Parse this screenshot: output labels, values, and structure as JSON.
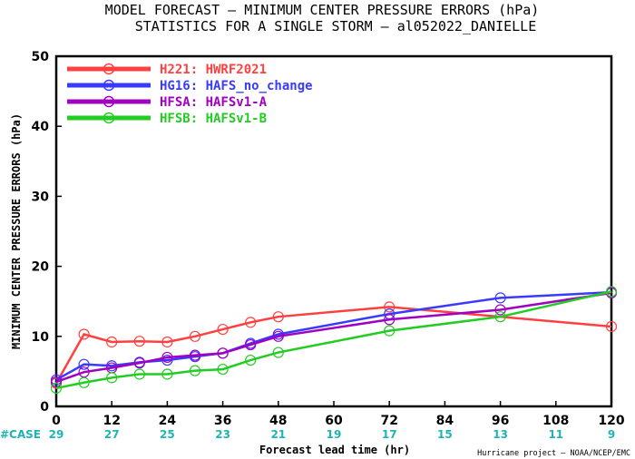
{
  "title_line1": "MODEL FORECAST – MINIMUM CENTER PRESSURE ERRORS (hPa)",
  "title_line2": "STATISTICS FOR A SINGLE STORM – al052022_DANIELLE",
  "credit": "Hurricane project – NOAA/NCEP/EMC",
  "case_label": "#CASE",
  "chart_data": {
    "type": "line",
    "xlabel": "Forecast lead time (hr)",
    "ylabel": "MINIMUM CENTER PRESSURE ERRORS (hPa)",
    "xlim": [
      0,
      120
    ],
    "ylim": [
      0,
      50
    ],
    "xticks": [
      0,
      12,
      24,
      36,
      48,
      60,
      72,
      84,
      96,
      108,
      120
    ],
    "yticks": [
      0,
      10,
      20,
      30,
      40,
      50
    ],
    "grid": false,
    "legend_position": "top-left",
    "case_counts": [
      {
        "x": 0,
        "count": "29"
      },
      {
        "x": 12,
        "count": "27"
      },
      {
        "x": 24,
        "count": "25"
      },
      {
        "x": 36,
        "count": "23"
      },
      {
        "x": 48,
        "count": "21"
      },
      {
        "x": 60,
        "count": "19"
      },
      {
        "x": 72,
        "count": "17"
      },
      {
        "x": 84,
        "count": "15"
      },
      {
        "x": 96,
        "count": "13"
      },
      {
        "x": 108,
        "count": "11"
      },
      {
        "x": 120,
        "count": "9"
      }
    ],
    "series": [
      {
        "name": "H221: HWRF2021",
        "color": "#ff4040",
        "x": [
          0,
          6,
          12,
          18,
          24,
          30,
          36,
          42,
          48,
          72,
          120
        ],
        "y": [
          3.3,
          10.3,
          9.2,
          9.3,
          9.2,
          10.0,
          11.0,
          12.0,
          12.8,
          14.2,
          11.4
        ]
      },
      {
        "name": "HG16: HAFS_no_change",
        "color": "#3a3aff",
        "x": [
          0,
          6,
          12,
          18,
          24,
          30,
          36,
          42,
          48,
          72,
          96,
          120
        ],
        "y": [
          3.8,
          6.0,
          5.8,
          6.3,
          6.6,
          7.1,
          7.6,
          9.0,
          10.3,
          13.2,
          15.5,
          16.3
        ]
      },
      {
        "name": "HFSA: HAFSv1-A",
        "color": "#a000c0",
        "x": [
          0,
          6,
          12,
          18,
          24,
          30,
          36,
          42,
          48,
          72,
          96,
          120
        ],
        "y": [
          3.5,
          4.9,
          5.5,
          6.2,
          7.0,
          7.3,
          7.6,
          8.8,
          10.0,
          12.4,
          13.8,
          16.2
        ]
      },
      {
        "name": "HFSB: HAFSv1-B",
        "color": "#22cc22",
        "x": [
          0,
          6,
          12,
          18,
          24,
          30,
          36,
          42,
          48,
          72,
          96,
          120
        ],
        "y": [
          2.6,
          3.4,
          4.1,
          4.6,
          4.6,
          5.1,
          5.3,
          6.6,
          7.7,
          10.8,
          12.8,
          16.4
        ]
      }
    ]
  }
}
